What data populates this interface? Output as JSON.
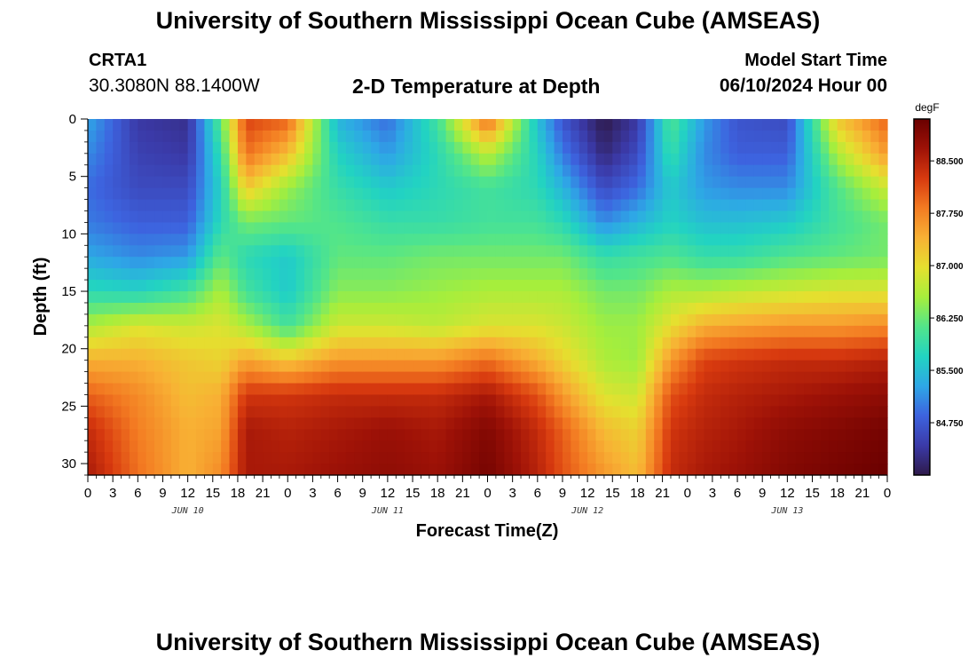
{
  "header": {
    "title": "University of Southern Mississippi Ocean Cube (AMSEAS)",
    "station_id": "CRTA1",
    "coords": "30.3080N  88.1400W",
    "model_start_label": "Model Start Time",
    "model_start_time": "06/10/2024 Hour 00"
  },
  "footer": {
    "title": "University of Southern Mississippi Ocean Cube (AMSEAS)"
  },
  "chart_data": {
    "type": "heatmap",
    "title": "2-D Temperature at Depth",
    "xlabel": "Forecast Time(Z)",
    "ylabel": "Depth (ft)",
    "units": "degF",
    "xlim": [
      0,
      96
    ],
    "ylim": [
      31,
      0
    ],
    "x_tick_hours": [
      0,
      3,
      6,
      9,
      12,
      15,
      18,
      21,
      24,
      27,
      30,
      33,
      36,
      39,
      42,
      45,
      48,
      51,
      54,
      57,
      60,
      63,
      66,
      69,
      72,
      75,
      78,
      81,
      84,
      87,
      90,
      93,
      96
    ],
    "x_tick_labels": [
      "0",
      "3",
      "6",
      "9",
      "12",
      "15",
      "18",
      "21",
      "0",
      "3",
      "6",
      "9",
      "12",
      "15",
      "18",
      "21",
      "0",
      "3",
      "6",
      "9",
      "12",
      "15",
      "18",
      "21",
      "0",
      "3",
      "6",
      "9",
      "12",
      "15",
      "18",
      "21",
      "0"
    ],
    "day_labels": [
      {
        "label": "JUN 10",
        "hour": 12
      },
      {
        "label": "JUN 11",
        "hour": 36
      },
      {
        "label": "JUN 12",
        "hour": 60
      },
      {
        "label": "JUN 13",
        "hour": 84
      }
    ],
    "y_ticks": [
      0,
      5,
      10,
      15,
      20,
      25,
      30
    ],
    "y_tick_labels": [
      "0",
      "5",
      "10",
      "15",
      "20",
      "25",
      "30"
    ],
    "colorbar": {
      "min": 84.0,
      "max": 89.1,
      "ticks": [
        84.75,
        85.5,
        86.25,
        87.0,
        87.75,
        88.5
      ],
      "tick_labels": [
        "84.750",
        "85.500",
        "86.250",
        "87.000",
        "87.750",
        "88.500"
      ],
      "colors": [
        "#2e1a4a",
        "#3b3aa8",
        "#3d63df",
        "#2ea7e6",
        "#22d3c2",
        "#52e58a",
        "#a6ee3c",
        "#e5e02f",
        "#f8b134",
        "#f37b22",
        "#d83a0f",
        "#9e1207",
        "#6a0000"
      ]
    },
    "profile_times": [
      0,
      6,
      12,
      16,
      19,
      24,
      30,
      36,
      42,
      48,
      54,
      57,
      62,
      66,
      70,
      74,
      78,
      84,
      90,
      96
    ],
    "profile_depths": [
      0,
      3,
      6,
      9,
      12,
      15,
      18,
      21,
      24,
      27,
      31
    ],
    "temperature_degF": [
      [
        85.3,
        85.1,
        84.9,
        85.0,
        85.3,
        85.8,
        86.6,
        87.4,
        88.0,
        88.4,
        88.6
      ],
      [
        84.4,
        84.5,
        84.6,
        84.8,
        85.1,
        85.7,
        86.9,
        87.4,
        87.7,
        87.8,
        87.9
      ],
      [
        84.3,
        84.4,
        84.6,
        84.8,
        85.2,
        86.0,
        86.8,
        87.2,
        87.3,
        87.4,
        87.4
      ],
      [
        86.2,
        85.9,
        85.7,
        85.8,
        86.2,
        86.6,
        86.9,
        87.1,
        87.4,
        87.5,
        87.7
      ],
      [
        88.2,
        87.9,
        87.2,
        86.3,
        85.8,
        86.0,
        86.6,
        87.5,
        88.3,
        88.6,
        88.6
      ],
      [
        88.0,
        87.3,
        86.5,
        86.2,
        85.6,
        85.6,
        86.0,
        87.2,
        88.3,
        88.5,
        88.6
      ],
      [
        85.4,
        85.7,
        85.9,
        86.1,
        86.2,
        86.4,
        86.8,
        87.6,
        88.4,
        88.6,
        88.7
      ],
      [
        84.9,
        85.2,
        85.6,
        85.9,
        86.2,
        86.4,
        86.8,
        87.6,
        88.4,
        88.7,
        88.8
      ],
      [
        86.0,
        85.8,
        85.8,
        85.9,
        86.3,
        86.5,
        86.7,
        87.6,
        88.4,
        88.6,
        88.7
      ],
      [
        88.0,
        86.7,
        86.0,
        86.0,
        86.3,
        86.6,
        86.9,
        87.9,
        88.6,
        88.9,
        89.0
      ],
      [
        85.5,
        85.7,
        85.8,
        86.0,
        86.3,
        86.6,
        86.9,
        87.4,
        88.1,
        88.4,
        88.5
      ],
      [
        84.7,
        85.0,
        85.4,
        85.8,
        86.3,
        86.6,
        86.8,
        87.1,
        87.6,
        88.0,
        88.1
      ],
      [
        84.0,
        84.2,
        84.6,
        85.1,
        85.9,
        86.3,
        86.5,
        86.6,
        86.9,
        87.3,
        87.6
      ],
      [
        84.4,
        84.6,
        84.9,
        85.4,
        86.0,
        86.3,
        86.5,
        86.5,
        86.8,
        87.1,
        87.3
      ],
      [
        86.1,
        85.9,
        85.6,
        85.7,
        86.1,
        86.6,
        87.0,
        87.6,
        88.1,
        88.3,
        88.4
      ],
      [
        85.2,
        85.1,
        85.2,
        85.5,
        85.9,
        86.6,
        87.4,
        88.2,
        88.4,
        88.5,
        88.6
      ],
      [
        84.7,
        84.8,
        85.1,
        85.5,
        85.9,
        86.7,
        87.5,
        88.3,
        88.5,
        88.6,
        88.7
      ],
      [
        84.6,
        84.8,
        85.1,
        85.6,
        86.1,
        86.8,
        87.6,
        88.4,
        88.6,
        88.8,
        88.9
      ],
      [
        87.2,
        86.6,
        86.1,
        86.0,
        86.2,
        86.9,
        87.6,
        88.4,
        88.7,
        88.9,
        89.0
      ],
      [
        88.0,
        87.6,
        86.8,
        86.3,
        86.3,
        86.9,
        87.7,
        88.5,
        88.8,
        89.0,
        89.1
      ]
    ]
  }
}
